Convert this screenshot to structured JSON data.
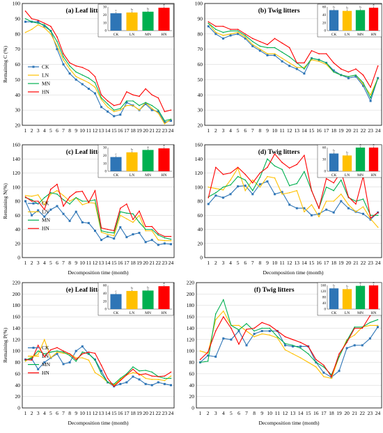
{
  "colors": {
    "CK": "#2e75b6",
    "LN": "#ffc000",
    "MN": "#00b050",
    "HN": "#ff0000"
  },
  "markers": {
    "CK": "square",
    "LN": "none",
    "MN": "none",
    "HN": "none"
  },
  "legend_labels": [
    "CK",
    "LN",
    "MN",
    "HN"
  ],
  "chart_data": [
    {
      "type": "line",
      "title": "(a) Leaf litters",
      "ylabel": "Remaining C (%)",
      "xlabel": "",
      "x": [
        1,
        2,
        3,
        4,
        5,
        6,
        7,
        8,
        9,
        10,
        11,
        12,
        13,
        14,
        15,
        16,
        17,
        18,
        19,
        20,
        21,
        22,
        23,
        24
      ],
      "ylim": [
        20,
        100
      ],
      "yticks": [
        20,
        30,
        40,
        50,
        60,
        70,
        80,
        90,
        100
      ],
      "grid": true,
      "legend": "left",
      "series": [
        {
          "name": "CK",
          "values": [
            88,
            88,
            88,
            85,
            82,
            70,
            60,
            54,
            50,
            47,
            44,
            41,
            32,
            29,
            26,
            27,
            35,
            33,
            30,
            34,
            30,
            29,
            22,
            23
          ]
        },
        {
          "name": "LN",
          "values": [
            81,
            83,
            86,
            84,
            80,
            72,
            63,
            57,
            52,
            50,
            48,
            45,
            37,
            32,
            29,
            30,
            33,
            33,
            30,
            35,
            31,
            28,
            21,
            24
          ]
        },
        {
          "name": "MN",
          "values": [
            90,
            88,
            87,
            86,
            82,
            75,
            65,
            59,
            55,
            53,
            51,
            48,
            38,
            34,
            30,
            31,
            36,
            36,
            33,
            35,
            33,
            30,
            23,
            24
          ]
        },
        {
          "name": "HN",
          "values": [
            95,
            90,
            89,
            87,
            85,
            78,
            67,
            61,
            59,
            58,
            56,
            52,
            40,
            36,
            33,
            34,
            42,
            40,
            39,
            44,
            40,
            38,
            29,
            30
          ]
        }
      ],
      "inset": {
        "categories": [
          "CK",
          "LN",
          "MN",
          "HN"
        ],
        "values": [
          22,
          23,
          24,
          29
        ],
        "letters": [
          "c",
          "b",
          "b",
          "a"
        ],
        "ylim": [
          0,
          30
        ],
        "yticks": [
          0,
          10,
          20,
          30
        ]
      }
    },
    {
      "type": "line",
      "title": "(b) Twig litters",
      "ylabel": "",
      "xlabel": "",
      "x": [
        1,
        2,
        3,
        4,
        5,
        6,
        7,
        8,
        9,
        10,
        11,
        12,
        13,
        14,
        15,
        16,
        17,
        18,
        19,
        20,
        21,
        22,
        23,
        24
      ],
      "ylim": [
        20,
        100
      ],
      "yticks": [
        20,
        30,
        40,
        50,
        60,
        70,
        80,
        90,
        100
      ],
      "grid": true,
      "legend": "none",
      "series": [
        {
          "name": "CK",
          "values": [
            85,
            80,
            77,
            79,
            80,
            77,
            72,
            69,
            66,
            66,
            62,
            59,
            57,
            54,
            64,
            63,
            61,
            56,
            53,
            51,
            52,
            46,
            36,
            51
          ]
        },
        {
          "name": "LN",
          "values": [
            87,
            81,
            79,
            80,
            81,
            78,
            73,
            70,
            67,
            67,
            64,
            61,
            58,
            58,
            63,
            62,
            60,
            55,
            53,
            52,
            53,
            47,
            40,
            51
          ]
        },
        {
          "name": "MN",
          "values": [
            87,
            83,
            81,
            82,
            82,
            79,
            75,
            72,
            71,
            71,
            68,
            65,
            61,
            57,
            64,
            63,
            61,
            55,
            53,
            52,
            53,
            48,
            38,
            51
          ]
        },
        {
          "name": "HN",
          "values": [
            88,
            85,
            85,
            83,
            83,
            80,
            77,
            75,
            73,
            77,
            74,
            71,
            61,
            61,
            69,
            67,
            67,
            61,
            57,
            55,
            57,
            53,
            45,
            59
          ]
        }
      ],
      "inset": {
        "categories": [
          "CK",
          "LN",
          "MN",
          "HN"
        ],
        "values": [
          52,
          50,
          52,
          58
        ],
        "letters": [
          "b",
          "b",
          "b",
          "a"
        ],
        "ylim": [
          0,
          60
        ],
        "yticks": [
          0,
          20,
          40,
          60
        ]
      }
    },
    {
      "type": "line",
      "title": "(c) Leaf litters",
      "ylabel": "Remaining N(%)",
      "xlabel": "Decomposition time (month)",
      "x": [
        1,
        2,
        3,
        4,
        5,
        6,
        7,
        8,
        9,
        10,
        11,
        12,
        13,
        14,
        15,
        16,
        17,
        18,
        19,
        20,
        21,
        22,
        23,
        24
      ],
      "ylim": [
        0,
        160
      ],
      "yticks": [
        0,
        20,
        40,
        60,
        80,
        100,
        120,
        140,
        160
      ],
      "grid": true,
      "legend": "left",
      "series": [
        {
          "name": "CK",
          "values": [
            80,
            60,
            67,
            58,
            68,
            73,
            62,
            52,
            65,
            50,
            49,
            38,
            25,
            30,
            27,
            43,
            29,
            33,
            35,
            22,
            25,
            18,
            20,
            19
          ]
        },
        {
          "name": "LN",
          "values": [
            88,
            87,
            89,
            75,
            90,
            95,
            88,
            80,
            85,
            75,
            78,
            77,
            36,
            33,
            31,
            60,
            55,
            50,
            60,
            38,
            38,
            25,
            24,
            24
          ]
        },
        {
          "name": "MN",
          "values": [
            85,
            82,
            76,
            85,
            92,
            90,
            82,
            76,
            85,
            80,
            80,
            82,
            38,
            36,
            35,
            65,
            63,
            62,
            50,
            40,
            40,
            32,
            28,
            26
          ]
        },
        {
          "name": "HN",
          "values": [
            86,
            80,
            80,
            68,
            97,
            104,
            73,
            86,
            93,
            94,
            78,
            95,
            42,
            40,
            38,
            70,
            76,
            54,
            66,
            44,
            44,
            34,
            30,
            30
          ]
        }
      ],
      "inset": {
        "categories": [
          "CK",
          "LN",
          "MN",
          "HN"
        ],
        "values": [
          18,
          24,
          27,
          29
        ],
        "letters": [
          "c",
          "b",
          "a",
          "a"
        ],
        "ylim": [
          0,
          30
        ],
        "yticks": [
          0,
          10,
          20,
          30
        ]
      }
    },
    {
      "type": "line",
      "title": "(d) Twig litters",
      "ylabel": "",
      "xlabel": "Decomposition time (month)",
      "x": [
        1,
        2,
        3,
        4,
        5,
        6,
        7,
        8,
        9,
        10,
        11,
        12,
        13,
        14,
        15,
        16,
        17,
        18,
        19,
        20,
        21,
        22,
        23,
        24
      ],
      "ylim": [
        0,
        160
      ],
      "yticks": [
        0,
        20,
        40,
        60,
        80,
        100,
        120,
        140,
        160
      ],
      "grid": true,
      "legend": "none",
      "series": [
        {
          "name": "CK",
          "values": [
            76,
            88,
            85,
            90,
            101,
            102,
            90,
            104,
            108,
            90,
            93,
            75,
            70,
            70,
            60,
            62,
            68,
            64,
            80,
            70,
            65,
            62,
            54,
            64
          ]
        },
        {
          "name": "LN",
          "values": [
            100,
            98,
            96,
            110,
            127,
            95,
            110,
            100,
            115,
            113,
            90,
            92,
            95,
            65,
            75,
            58,
            80,
            80,
            90,
            75,
            65,
            72,
            55,
            43
          ]
        },
        {
          "name": "MN",
          "values": [
            86,
            92,
            100,
            103,
            115,
            110,
            95,
            114,
            140,
            130,
            125,
            102,
            105,
            122,
            95,
            70,
            100,
            95,
            110,
            85,
            80,
            83,
            60,
            60
          ]
        },
        {
          "name": "HN",
          "values": [
            85,
            128,
            118,
            120,
            128,
            118,
            106,
            120,
            128,
            147,
            135,
            127,
            132,
            145,
            95,
            70,
            112,
            106,
            122,
            86,
            76,
            115,
            56,
            64
          ]
        }
      ],
      "inset": {
        "categories": [
          "CK",
          "LN",
          "MN",
          "HN"
        ],
        "values": [
          45,
          40,
          63,
          65
        ],
        "letters": [
          "b",
          "b",
          "a",
          "a"
        ],
        "ylim": [
          0,
          60
        ],
        "yticks": [
          0,
          30,
          60
        ]
      }
    },
    {
      "type": "line",
      "title": "(e) Leaf litters",
      "ylabel": "Remaining P(%)",
      "xlabel": "Decomposition time (month)",
      "x": [
        1,
        2,
        3,
        4,
        5,
        6,
        7,
        8,
        9,
        10,
        11,
        12,
        13,
        14,
        15,
        16,
        17,
        18,
        19,
        20,
        21,
        22,
        23,
        24
      ],
      "ylim": [
        0,
        220
      ],
      "yticks": [
        0,
        20,
        40,
        60,
        80,
        100,
        120,
        140,
        160,
        180,
        200,
        220
      ],
      "grid": true,
      "legend": "left",
      "series": [
        {
          "name": "CK",
          "values": [
            85,
            86,
            68,
            80,
            88,
            95,
            77,
            80,
            100,
            108,
            95,
            85,
            65,
            45,
            38,
            42,
            45,
            55,
            50,
            42,
            40,
            45,
            42,
            40
          ]
        },
        {
          "name": "LN",
          "values": [
            82,
            90,
            94,
            120,
            88,
            98,
            96,
            95,
            88,
            88,
            84,
            62,
            55,
            45,
            40,
            50,
            58,
            62,
            60,
            52,
            50,
            50,
            48,
            56
          ]
        },
        {
          "name": "MN",
          "values": [
            84,
            88,
            100,
            95,
            98,
            100,
            98,
            92,
            82,
            98,
            95,
            84,
            60,
            45,
            42,
            52,
            60,
            72,
            65,
            66,
            63,
            55,
            52,
            52
          ]
        },
        {
          "name": "HN",
          "values": [
            85,
            84,
            110,
            90,
            102,
            106,
            100,
            95,
            85,
            95,
            98,
            96,
            75,
            52,
            38,
            48,
            58,
            68,
            58,
            60,
            56,
            55,
            56,
            63
          ]
        }
      ],
      "inset": {
        "categories": [
          "CK",
          "LN",
          "MN",
          "HN"
        ],
        "values": [
          38,
          46,
          47,
          58
        ],
        "letters": [
          "c",
          "b",
          "b",
          "a"
        ],
        "ylim": [
          0,
          60
        ],
        "yticks": [
          0,
          20,
          40,
          60
        ]
      }
    },
    {
      "type": "line",
      "title": "(f) Twig litters",
      "ylabel": "",
      "xlabel": "Decomposition time (month)",
      "x": [
        1,
        2,
        3,
        4,
        5,
        6,
        7,
        8,
        9,
        10,
        11,
        12,
        13,
        14,
        15,
        16,
        17,
        18,
        19,
        20,
        21,
        22,
        23,
        24
      ],
      "ylim": [
        0,
        220
      ],
      "yticks": [
        0,
        20,
        40,
        60,
        80,
        100,
        120,
        140,
        160,
        180,
        200,
        220
      ],
      "grid": true,
      "legend": "none",
      "series": [
        {
          "name": "CK",
          "values": [
            80,
            92,
            90,
            122,
            120,
            135,
            110,
            130,
            135,
            135,
            135,
            110,
            108,
            108,
            108,
            80,
            62,
            54,
            65,
            105,
            110,
            110,
            122,
            142
          ]
        },
        {
          "name": "LN",
          "values": [
            100,
            96,
            155,
            170,
            145,
            145,
            135,
            125,
            130,
            128,
            123,
            102,
            95,
            88,
            80,
            72,
            55,
            52,
            90,
            120,
            128,
            142,
            145,
            145
          ]
        },
        {
          "name": "MN",
          "values": [
            80,
            82,
            165,
            190,
            145,
            137,
            148,
            135,
            140,
            140,
            125,
            113,
            110,
            105,
            95,
            80,
            72,
            58,
            90,
            118,
            142,
            142,
            150,
            155
          ]
        },
        {
          "name": "HN",
          "values": [
            85,
            98,
            135,
            160,
            140,
            112,
            138,
            140,
            150,
            145,
            135,
            125,
            120,
            115,
            108,
            85,
            75,
            55,
            95,
            115,
            140,
            140,
            162,
            172
          ]
        }
      ],
      "inset": {
        "categories": [
          "CK",
          "LN",
          "MN",
          "HN"
        ],
        "values": [
          140,
          135,
          157,
          170
        ],
        "letters": [
          "b",
          "b",
          "a",
          "a"
        ],
        "ylim": [
          0,
          160
        ],
        "yticks": [
          0,
          40,
          80,
          120,
          160
        ]
      }
    }
  ]
}
